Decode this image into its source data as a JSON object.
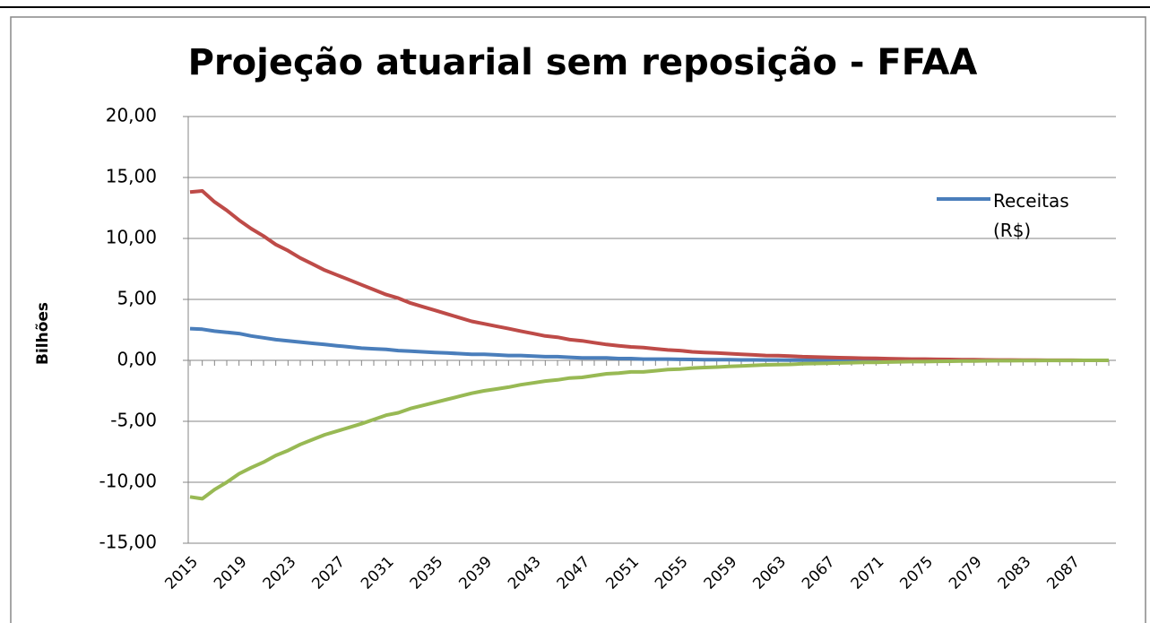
{
  "chart_data": {
    "type": "line",
    "title": "Projeção atuarial sem reposição - FFAA",
    "y_label": "Bilhões",
    "categories": [
      "2015",
      null,
      null,
      null,
      "2019",
      null,
      null,
      null,
      "2023",
      null,
      null,
      null,
      "2027",
      null,
      null,
      null,
      "2031",
      null,
      null,
      null,
      "2035",
      null,
      null,
      null,
      "2039",
      null,
      null,
      null,
      "2043",
      null,
      null,
      null,
      "2047",
      null,
      null,
      null,
      "2051",
      null,
      null,
      null,
      "2055",
      null,
      null,
      null,
      "2059",
      null,
      null,
      null,
      "2063",
      null,
      null,
      null,
      "2067",
      null,
      null,
      null,
      "2071",
      null,
      null,
      null,
      "2075",
      null,
      null,
      null,
      "2079",
      null,
      null,
      null,
      "2083",
      null,
      null,
      null,
      "2087",
      null,
      null,
      null
    ],
    "series": [
      {
        "name": "Receitas (R$)",
        "color": "#4a7ebb",
        "values": [
          2.6,
          2.55,
          2.4,
          2.3,
          2.2,
          2.0,
          1.85,
          1.7,
          1.6,
          1.5,
          1.4,
          1.3,
          1.2,
          1.1,
          1.0,
          0.95,
          0.9,
          0.8,
          0.75,
          0.7,
          0.65,
          0.6,
          0.55,
          0.5,
          0.5,
          0.45,
          0.4,
          0.4,
          0.35,
          0.3,
          0.3,
          0.25,
          0.2,
          0.2,
          0.2,
          0.15,
          0.15,
          0.1,
          0.1,
          0.1,
          0.08,
          0.07,
          0.06,
          0.05,
          0.05,
          0.04,
          0.04,
          0.03,
          0.03,
          0.02,
          0.02,
          0.02,
          0.01,
          0.01,
          0.01,
          0.01,
          0,
          0,
          0,
          0,
          0,
          0,
          0,
          0,
          0,
          0,
          0,
          0,
          0,
          0,
          0,
          0,
          0,
          0,
          0,
          0
        ]
      },
      {
        "color": "#be4b48",
        "values": [
          13.8,
          13.9,
          13.0,
          12.3,
          11.5,
          10.8,
          10.2,
          9.5,
          9.0,
          8.4,
          7.9,
          7.4,
          7.0,
          6.6,
          6.2,
          5.8,
          5.4,
          5.1,
          4.7,
          4.4,
          4.1,
          3.8,
          3.5,
          3.2,
          3.0,
          2.8,
          2.6,
          2.4,
          2.2,
          2.0,
          1.9,
          1.7,
          1.6,
          1.45,
          1.3,
          1.2,
          1.1,
          1.05,
          0.95,
          0.85,
          0.8,
          0.7,
          0.65,
          0.6,
          0.55,
          0.5,
          0.45,
          0.4,
          0.38,
          0.35,
          0.3,
          0.28,
          0.25,
          0.22,
          0.2,
          0.18,
          0.16,
          0.14,
          0.12,
          0.1,
          0.1,
          0.08,
          0.07,
          0.06,
          0.05,
          0.04,
          0.03,
          0.03,
          0.02,
          0.02,
          0.01,
          0.01,
          0.01,
          0,
          0,
          0
        ]
      },
      {
        "color": "#98b954",
        "values": [
          -11.2,
          -11.35,
          -10.6,
          -10.0,
          -9.3,
          -8.8,
          -8.35,
          -7.8,
          -7.4,
          -6.9,
          -6.5,
          -6.1,
          -5.8,
          -5.5,
          -5.2,
          -4.85,
          -4.5,
          -4.3,
          -3.95,
          -3.7,
          -3.45,
          -3.2,
          -2.95,
          -2.7,
          -2.5,
          -2.35,
          -2.2,
          -2.0,
          -1.85,
          -1.7,
          -1.6,
          -1.45,
          -1.4,
          -1.25,
          -1.1,
          -1.05,
          -0.95,
          -0.95,
          -0.85,
          -0.75,
          -0.72,
          -0.63,
          -0.59,
          -0.55,
          -0.5,
          -0.46,
          -0.41,
          -0.37,
          -0.35,
          -0.33,
          -0.28,
          -0.26,
          -0.24,
          -0.21,
          -0.19,
          -0.17,
          -0.16,
          -0.14,
          -0.12,
          -0.1,
          -0.1,
          -0.08,
          -0.07,
          -0.06,
          -0.05,
          -0.04,
          -0.03,
          -0.03,
          -0.02,
          -0.02,
          -0.01,
          -0.01,
          -0.01,
          0,
          0,
          0
        ]
      }
    ],
    "ylim": [
      -15,
      20
    ],
    "yticks": [
      {
        "value": -15,
        "label": "-15,00"
      },
      {
        "value": -10,
        "label": "-10,00"
      },
      {
        "value": -5,
        "label": "-5,00"
      },
      {
        "value": 0,
        "label": "0,00"
      },
      {
        "value": 5,
        "label": "5,00"
      },
      {
        "value": 10,
        "label": "10,00"
      },
      {
        "value": 15,
        "label": "15,00"
      },
      {
        "value": 20,
        "label": "20,00"
      }
    ],
    "grid": true,
    "legend": "right"
  }
}
